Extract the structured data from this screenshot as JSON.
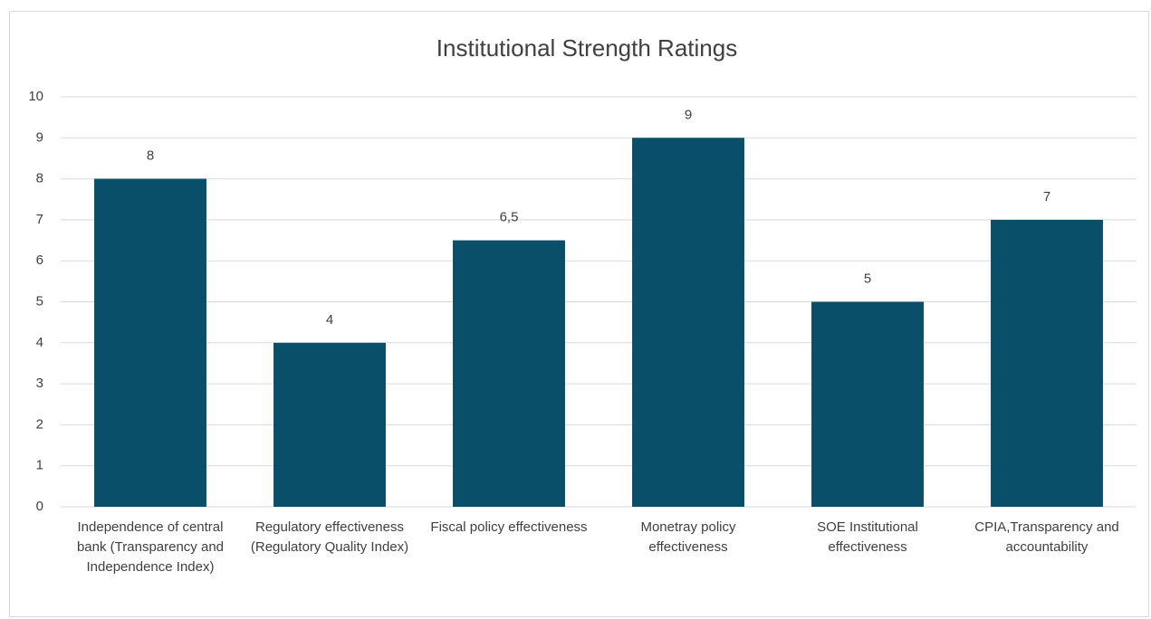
{
  "chart_data": {
    "type": "bar",
    "title": "Institutional Strength Ratings",
    "categories": [
      "Independence of central bank (Transparency and Independence Index)",
      "Regulatory effectiveness (Regulatory Quality Index)",
      "Fiscal policy effectiveness",
      "Monetray  policy effectiveness",
      "SOE Institutional effectiveness",
      "CPIA,Transparency and accountability"
    ],
    "values": [
      8,
      4,
      6.5,
      9,
      5,
      7
    ],
    "value_labels": [
      "8",
      "4",
      "6,5",
      "9",
      "5",
      "7"
    ],
    "color": "#0a4f69",
    "ylim": [
      0,
      10
    ],
    "yticks": [
      0,
      1,
      2,
      3,
      4,
      5,
      6,
      7,
      8,
      9,
      10
    ],
    "grid": true
  }
}
